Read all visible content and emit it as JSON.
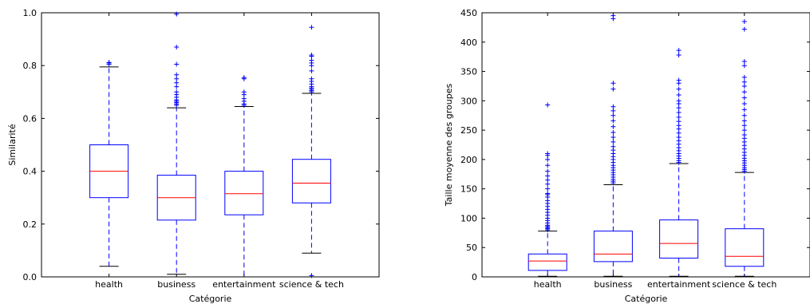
{
  "chart_data": [
    {
      "type": "box",
      "xlabel": "Catégorie",
      "ylabel": "Similarité",
      "ylim": [
        0,
        1.0
      ],
      "yticks": [
        0.0,
        0.2,
        0.4,
        0.6,
        0.8,
        1.0
      ],
      "ytick_labels": [
        "0.0",
        "0.2",
        "0.4",
        "0.6",
        "0.8",
        "1.0"
      ],
      "categories": [
        "health",
        "business",
        "entertainment",
        "science & tech"
      ],
      "boxes": [
        {
          "min": 0.04,
          "q1": 0.3,
          "median": 0.4,
          "q3": 0.5,
          "max": 0.795,
          "outliers": [
            0.805,
            0.81,
            0.812
          ]
        },
        {
          "min": 0.01,
          "q1": 0.215,
          "median": 0.3,
          "q3": 0.385,
          "max": 0.64,
          "outliers": [
            0.65,
            0.655,
            0.66,
            0.665,
            0.67,
            0.68,
            0.69,
            0.7,
            0.72,
            0.735,
            0.75,
            0.765,
            0.805,
            0.87,
            0.995
          ]
        },
        {
          "min": 0.0,
          "q1": 0.235,
          "median": 0.315,
          "q3": 0.4,
          "max": 0.645,
          "outliers": [
            0.65,
            0.655,
            0.665,
            0.675,
            0.69,
            0.7,
            0.75,
            0.755
          ]
        },
        {
          "min": 0.09,
          "q1": 0.28,
          "median": 0.355,
          "q3": 0.445,
          "max": 0.695,
          "outliers": [
            0.005,
            0.7,
            0.705,
            0.71,
            0.715,
            0.72,
            0.73,
            0.74,
            0.75,
            0.78,
            0.8,
            0.81,
            0.82,
            0.835,
            0.84,
            0.945
          ]
        }
      ],
      "colors": {
        "box": "#0000ff",
        "median": "#ff0000",
        "whisker_cap": "#000000",
        "outlier": "#0000ff"
      }
    },
    {
      "type": "box",
      "xlabel": "Catégorie",
      "ylabel": "Taille moyenne des groupes",
      "ylim": [
        0,
        450
      ],
      "yticks": [
        0,
        50,
        100,
        150,
        200,
        250,
        300,
        350,
        400,
        450
      ],
      "ytick_labels": [
        "0",
        "50",
        "100",
        "150",
        "200",
        "250",
        "300",
        "350",
        "400",
        "450"
      ],
      "categories": [
        "health",
        "business",
        "entertainment",
        "science & tech"
      ],
      "boxes": [
        {
          "min": 1,
          "q1": 11,
          "median": 27,
          "q3": 39,
          "max": 78,
          "outliers": [
            80,
            82,
            84,
            86,
            88,
            92,
            96,
            100,
            105,
            110,
            115,
            120,
            125,
            130,
            136,
            140,
            142,
            150,
            158,
            165,
            172,
            180,
            190,
            200,
            207,
            210,
            293
          ]
        },
        {
          "min": 1,
          "q1": 26,
          "median": 39,
          "q3": 78,
          "max": 157,
          "outliers": [
            160,
            163,
            166,
            170,
            174,
            178,
            182,
            186,
            190,
            195,
            200,
            205,
            210,
            216,
            222,
            230,
            238,
            246,
            256,
            266,
            275,
            283,
            290,
            320,
            330,
            440,
            445
          ]
        },
        {
          "min": 1,
          "q1": 32,
          "median": 57,
          "q3": 97,
          "max": 193,
          "outliers": [
            195,
            198,
            202,
            206,
            210,
            215,
            220,
            226,
            232,
            238,
            245,
            252,
            258,
            265,
            272,
            280,
            288,
            295,
            300,
            310,
            320,
            330,
            335,
            378,
            386
          ]
        },
        {
          "min": 1,
          "q1": 18,
          "median": 35,
          "q3": 82,
          "max": 178,
          "outliers": [
            180,
            183,
            186,
            190,
            194,
            198,
            202,
            207,
            212,
            218,
            224,
            230,
            236,
            242,
            250,
            258,
            266,
            275,
            285,
            295,
            305,
            315,
            325,
            332,
            340,
            360,
            367,
            422,
            435
          ]
        }
      ],
      "colors": {
        "box": "#0000ff",
        "median": "#ff0000",
        "whisker_cap": "#000000",
        "outlier": "#0000ff"
      }
    }
  ]
}
